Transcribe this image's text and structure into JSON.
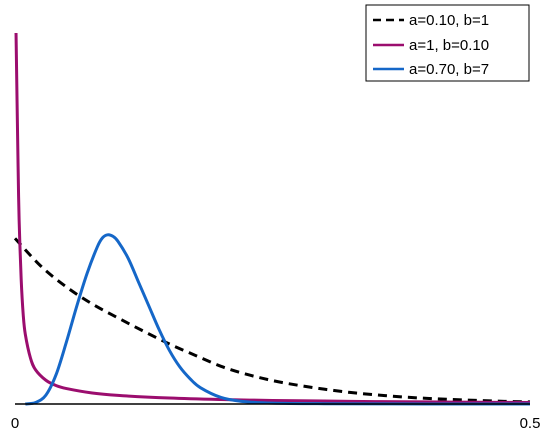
{
  "chart_data": {
    "type": "line",
    "title": "",
    "xlabel": "",
    "ylabel": "",
    "xlim": [
      0,
      0.5
    ],
    "ylim": [
      0,
      12.6
    ],
    "x_ticks": [
      "0",
      "0.5"
    ],
    "grid": false,
    "legend_position": "top-right",
    "series": [
      {
        "name": "a=0.10, b=1",
        "color": "#000000",
        "style": "dashed",
        "points": [
          [
            0,
            5.58
          ],
          [
            0.025,
            4.65
          ],
          [
            0.05,
            3.94
          ],
          [
            0.075,
            3.37
          ],
          [
            0.1,
            2.9
          ],
          [
            0.125,
            2.45
          ],
          [
            0.15,
            2.02
          ],
          [
            0.175,
            1.64
          ],
          [
            0.2,
            1.27
          ],
          [
            0.225,
            1.0
          ],
          [
            0.25,
            0.79
          ],
          [
            0.275,
            0.63
          ],
          [
            0.3,
            0.5
          ],
          [
            0.325,
            0.39
          ],
          [
            0.35,
            0.31
          ],
          [
            0.375,
            0.24
          ],
          [
            0.4,
            0.19
          ],
          [
            0.425,
            0.15
          ],
          [
            0.45,
            0.12
          ],
          [
            0.475,
            0.09
          ],
          [
            0.5,
            0.07
          ]
        ]
      },
      {
        "name": "a=1, b=0.10",
        "color": "#9b0d6e",
        "style": "solid",
        "points": [
          [
            0.001,
            12.5
          ],
          [
            0.002,
            10.2
          ],
          [
            0.003,
            8.0
          ],
          [
            0.004,
            6.2
          ],
          [
            0.006,
            4.2
          ],
          [
            0.008,
            3.0
          ],
          [
            0.01,
            2.35
          ],
          [
            0.015,
            1.55
          ],
          [
            0.02,
            1.15
          ],
          [
            0.03,
            0.8
          ],
          [
            0.04,
            0.62
          ],
          [
            0.05,
            0.52
          ],
          [
            0.075,
            0.37
          ],
          [
            0.1,
            0.29
          ],
          [
            0.15,
            0.2
          ],
          [
            0.2,
            0.15
          ],
          [
            0.25,
            0.12
          ],
          [
            0.3,
            0.1
          ],
          [
            0.35,
            0.08
          ],
          [
            0.4,
            0.07
          ],
          [
            0.45,
            0.06
          ],
          [
            0.5,
            0.05
          ]
        ]
      },
      {
        "name": "a=0.70, b=7",
        "color": "#1567c8",
        "style": "solid",
        "points": [
          [
            0.01,
            0.0
          ],
          [
            0.02,
            0.05
          ],
          [
            0.03,
            0.3
          ],
          [
            0.04,
            1.0
          ],
          [
            0.05,
            2.1
          ],
          [
            0.06,
            3.3
          ],
          [
            0.07,
            4.4
          ],
          [
            0.08,
            5.3
          ],
          [
            0.085,
            5.6
          ],
          [
            0.09,
            5.7
          ],
          [
            0.095,
            5.65
          ],
          [
            0.1,
            5.48
          ],
          [
            0.11,
            4.9
          ],
          [
            0.12,
            4.1
          ],
          [
            0.13,
            3.3
          ],
          [
            0.14,
            2.5
          ],
          [
            0.15,
            1.8
          ],
          [
            0.16,
            1.25
          ],
          [
            0.17,
            0.85
          ],
          [
            0.18,
            0.55
          ],
          [
            0.2,
            0.22
          ],
          [
            0.22,
            0.09
          ],
          [
            0.25,
            0.03
          ],
          [
            0.3,
            0.01
          ],
          [
            0.4,
            0.0
          ],
          [
            0.5,
            0.0
          ]
        ]
      }
    ]
  }
}
